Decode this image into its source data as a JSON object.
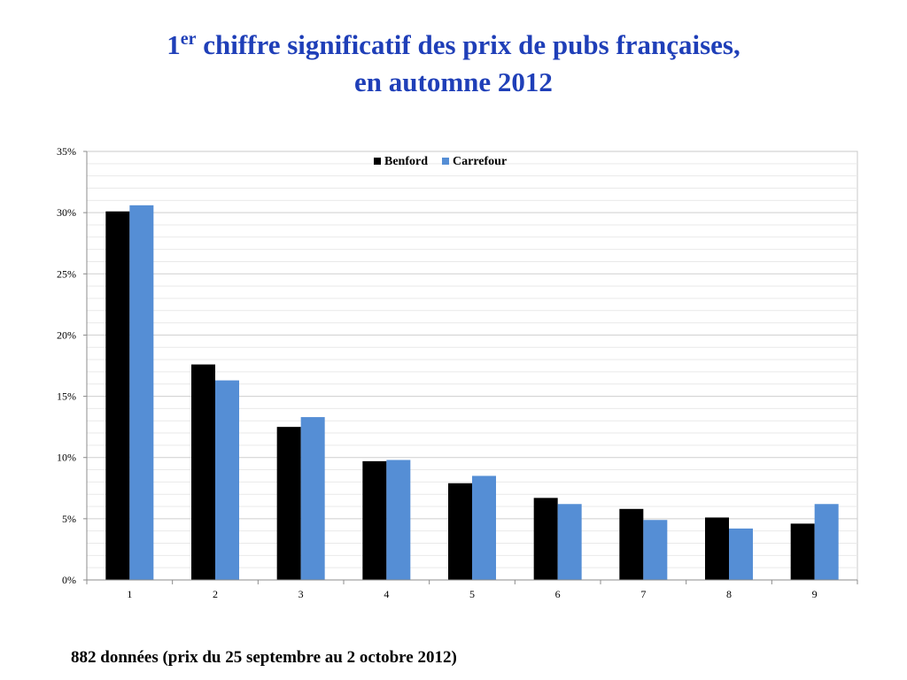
{
  "title": {
    "line1_number": "1",
    "line1_sup": "er",
    "line1_rest": " chiffre significatif des prix de pubs françaises,",
    "line2": "en automne 2012"
  },
  "footnote": "882 données (prix du 25 septembre au 2 octobre 2012)",
  "chart_data": {
    "type": "bar",
    "categories": [
      "1",
      "2",
      "3",
      "4",
      "5",
      "6",
      "7",
      "8",
      "9"
    ],
    "series": [
      {
        "name": "Benford",
        "color": "#000000",
        "values": [
          30.1,
          17.6,
          12.5,
          9.7,
          7.9,
          6.7,
          5.8,
          5.1,
          4.6
        ]
      },
      {
        "name": "Carrefour",
        "color": "#558ed5",
        "values": [
          30.6,
          16.3,
          13.3,
          9.8,
          8.5,
          6.2,
          4.9,
          4.2,
          6.2
        ]
      }
    ],
    "y_ticks": [
      "0%",
      "5%",
      "10%",
      "15%",
      "20%",
      "25%",
      "30%",
      "35%"
    ],
    "ylim": [
      0,
      35
    ],
    "y_tick_step": 5,
    "grid": true,
    "legend_position": "top-center"
  }
}
